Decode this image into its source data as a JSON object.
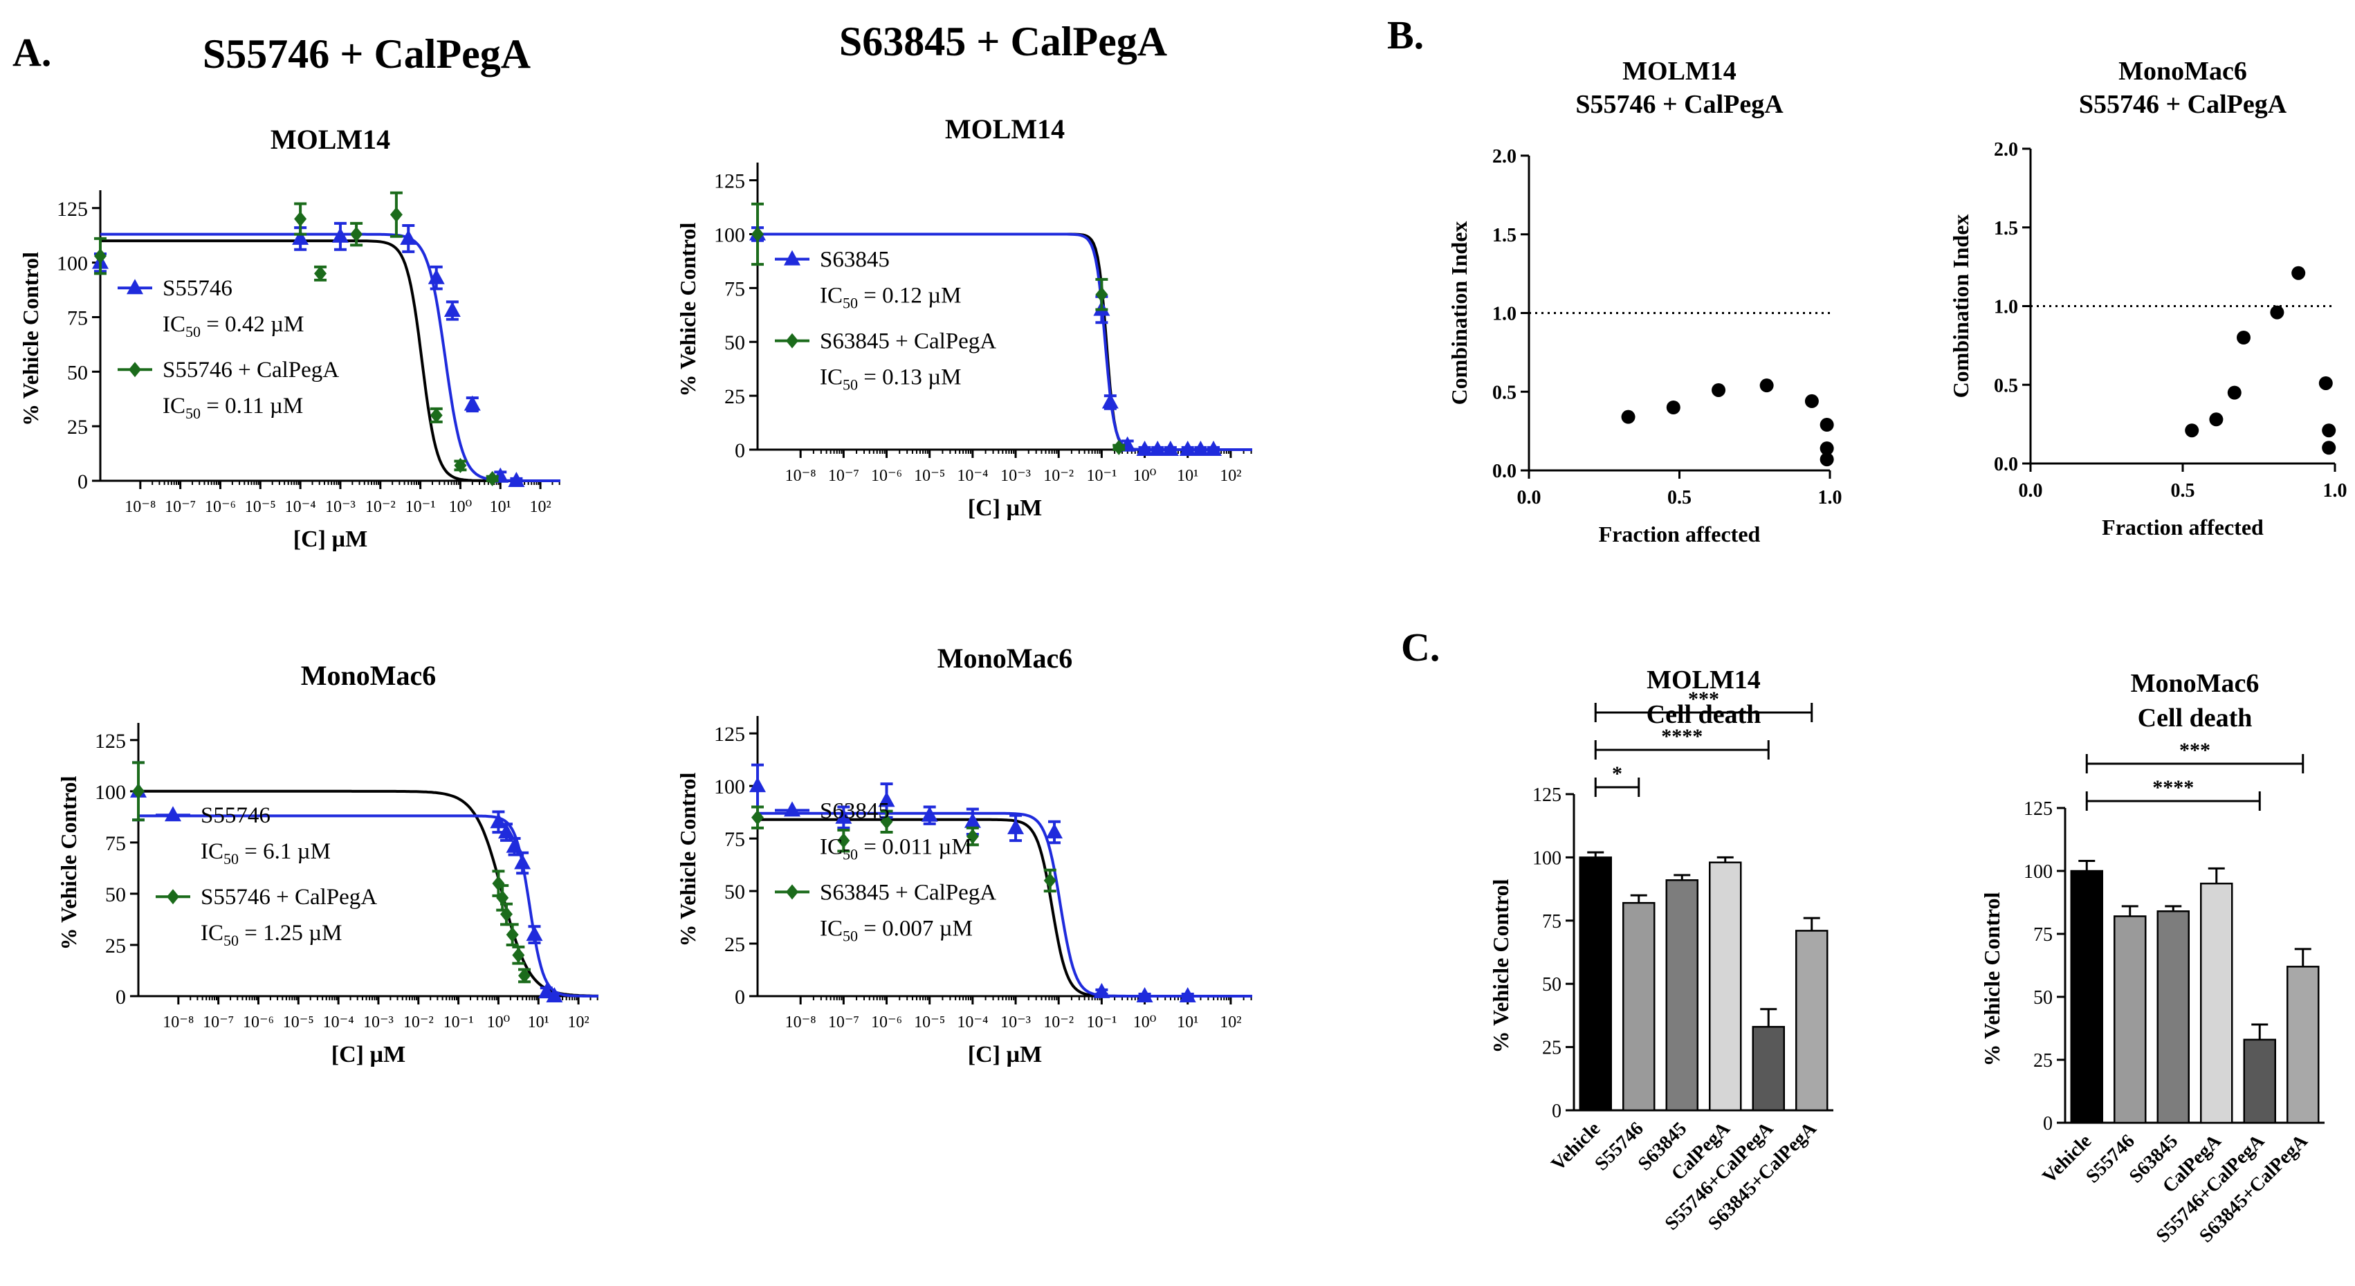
{
  "figure": {
    "panel_labels": {
      "a": "A.",
      "b": "B.",
      "c": "C."
    },
    "group_headers": {
      "s55746": "S55746 + CalPegA",
      "s63845": "S63845 + CalPegA"
    },
    "dose_tick_labels": [
      "10⁻⁸",
      "10⁻⁷",
      "10⁻⁶",
      "10⁻⁵",
      "10⁻⁴",
      "10⁻³",
      "10⁻²",
      "10⁻¹",
      "10⁰",
      "10¹",
      "10²"
    ],
    "colors": {
      "blue": "#1f2bdc",
      "green": "#1b6b1b",
      "black": "#000000"
    }
  },
  "chart_data": [
    {
      "id": "a1",
      "type": "line",
      "title": "MOLM14",
      "xlabel": "[C] µM",
      "ylabel": "% Vehicle Control",
      "xscale": "log",
      "xlim_log10": [
        -9,
        2.5
      ],
      "ylim": [
        0,
        130
      ],
      "yticks": [
        0,
        25,
        50,
        75,
        100,
        125
      ],
      "legend": "center-left",
      "series": [
        {
          "name": "S55746",
          "ic50_text": "IC50 = 0.42 µM",
          "color": "#1f2bdc",
          "marker": "triangle",
          "fit": {
            "top": 113,
            "bottom": 0,
            "ic50_log10": -0.38,
            "hill": 2.0
          },
          "points": [
            [
              -9,
              100,
              4
            ],
            [
              -4,
              111,
              5
            ],
            [
              -3,
              112,
              6
            ],
            [
              -1.3,
              111,
              6
            ],
            [
              -0.6,
              93,
              5
            ],
            [
              -0.2,
              78,
              4
            ],
            [
              0.3,
              35,
              3
            ],
            [
              1,
              2,
              2
            ],
            [
              1.4,
              0,
              1
            ]
          ]
        },
        {
          "name": "S55746 + CalPegA",
          "ic50_text": "IC50 = 0.11 µM",
          "color": "#1b6b1b",
          "marker": "diamond",
          "fit": {
            "top": 110,
            "bottom": 0,
            "ic50_log10": -0.96,
            "hill": 2.3
          },
          "points": [
            [
              -9,
              103,
              8
            ],
            [
              -4,
              120,
              7
            ],
            [
              -3.5,
              95,
              3
            ],
            [
              -2.6,
              113,
              5
            ],
            [
              -1.6,
              122,
              10
            ],
            [
              -0.6,
              30,
              3
            ],
            [
              0,
              7,
              2
            ],
            [
              0.8,
              1,
              1
            ]
          ]
        }
      ]
    },
    {
      "id": "a2",
      "type": "line",
      "title": "MOLM14",
      "xlabel": "[C] µM",
      "ylabel": "% Vehicle Control",
      "xscale": "log",
      "xlim_log10": [
        -9,
        2.5
      ],
      "ylim": [
        0,
        130
      ],
      "yticks": [
        0,
        25,
        50,
        75,
        100,
        125
      ],
      "legend": "center-left",
      "series": [
        {
          "name": "S63845",
          "ic50_text": "IC50 = 0.12 µM",
          "color": "#1f2bdc",
          "marker": "triangle",
          "fit": {
            "top": 100,
            "bottom": 0,
            "ic50_log10": -0.92,
            "hill": 4.0
          },
          "points": [
            [
              -9,
              100,
              3
            ],
            [
              -1,
              65,
              6
            ],
            [
              -0.8,
              22,
              3
            ],
            [
              -0.4,
              2,
              2
            ],
            [
              0,
              0,
              1
            ],
            [
              0.3,
              0,
              1
            ],
            [
              0.6,
              0,
              1
            ],
            [
              1,
              0,
              1
            ],
            [
              1.3,
              0,
              1
            ],
            [
              1.6,
              0,
              1
            ]
          ]
        },
        {
          "name": "S63845 + CalPegA",
          "ic50_text": "IC50 = 0.13 µM",
          "color": "#1b6b1b",
          "marker": "diamond",
          "fit": {
            "top": 100,
            "bottom": 0,
            "ic50_log10": -0.89,
            "hill": 4.5
          },
          "points": [
            [
              -9,
              100,
              14
            ],
            [
              -1,
              72,
              7
            ],
            [
              -0.6,
              1,
              1
            ]
          ]
        }
      ]
    },
    {
      "id": "a3",
      "type": "line",
      "title": "MonoMac6",
      "xlabel": "[C] µM",
      "ylabel": "% Vehicle Control",
      "xscale": "log",
      "xlim_log10": [
        -9,
        2.5
      ],
      "ylim": [
        0,
        130
      ],
      "yticks": [
        0,
        25,
        50,
        75,
        100,
        125
      ],
      "legend": "center-left",
      "series": [
        {
          "name": "S55746",
          "ic50_text": "IC50 = 6.1 µM",
          "color": "#1f2bdc",
          "marker": "triangle",
          "fit": {
            "top": 88,
            "bottom": 0,
            "ic50_log10": 0.78,
            "hill": 2.5
          },
          "points": [
            [
              -9,
              100,
              14
            ],
            [
              0,
              85,
              5
            ],
            [
              0.2,
              80,
              4
            ],
            [
              0.4,
              73,
              4
            ],
            [
              0.6,
              65,
              5
            ],
            [
              0.9,
              30,
              4
            ],
            [
              1.2,
              2,
              2
            ],
            [
              1.4,
              0,
              1
            ]
          ]
        },
        {
          "name": "S55746 + CalPegA",
          "ic50_text": "IC50 = 1.25 µM",
          "color": "#1b6b1b",
          "marker": "diamond",
          "fit": {
            "top": 100,
            "bottom": 0,
            "ic50_log10": 0.1,
            "hill": 1.3
          },
          "points": [
            [
              -9,
              100,
              14
            ],
            [
              0,
              55,
              6
            ],
            [
              0.1,
              48,
              6
            ],
            [
              0.2,
              40,
              5
            ],
            [
              0.35,
              30,
              5
            ],
            [
              0.5,
              20,
              4
            ],
            [
              0.65,
              10,
              3
            ]
          ]
        }
      ]
    },
    {
      "id": "a4",
      "type": "line",
      "title": "MonoMac6",
      "xlabel": "[C] µM",
      "ylabel": "% Vehicle Control",
      "xscale": "log",
      "xlim_log10": [
        -9,
        2.5
      ],
      "ylim": [
        0,
        130
      ],
      "yticks": [
        0,
        25,
        50,
        75,
        100,
        125
      ],
      "legend": "center-left",
      "series": [
        {
          "name": "S63845",
          "ic50_text": "IC50 = 0.011 µM",
          "color": "#1f2bdc",
          "marker": "triangle",
          "fit": {
            "top": 87,
            "bottom": 0,
            "ic50_log10": -1.96,
            "hill": 2.5
          },
          "points": [
            [
              -9,
              100,
              10
            ],
            [
              -7,
              85,
              5
            ],
            [
              -6,
              93,
              8
            ],
            [
              -5,
              86,
              4
            ],
            [
              -4,
              83,
              6
            ],
            [
              -3,
              80,
              6
            ],
            [
              -2.1,
              78,
              5
            ],
            [
              -1,
              2,
              1
            ],
            [
              0,
              0,
              1
            ],
            [
              1,
              0,
              1
            ]
          ]
        },
        {
          "name": "S63845 + CalPegA",
          "ic50_text": "IC50 = 0.007 µM",
          "color": "#1b6b1b",
          "marker": "diamond",
          "fit": {
            "top": 84,
            "bottom": 0,
            "ic50_log10": -2.15,
            "hill": 2.5
          },
          "points": [
            [
              -9,
              85,
              5
            ],
            [
              -7,
              74,
              5
            ],
            [
              -6,
              83,
              5
            ],
            [
              -4,
              76,
              4
            ],
            [
              -2.2,
              55,
              5
            ]
          ]
        }
      ]
    },
    {
      "id": "b1",
      "type": "scatter",
      "title": "MOLM14",
      "subtitle": "S55746 + CalPegA",
      "xlabel": "Fraction affected",
      "ylabel": "Combination Index",
      "xlim": [
        0,
        1
      ],
      "ylim": [
        0,
        2
      ],
      "xticks": [
        "0.0",
        "0.5",
        "1.0"
      ],
      "yticks": [
        "0.0",
        "0.5",
        "1.0",
        "1.5",
        "2.0"
      ],
      "reference_line": 1.0,
      "points": [
        [
          0.33,
          0.34
        ],
        [
          0.48,
          0.4
        ],
        [
          0.63,
          0.51
        ],
        [
          0.79,
          0.54
        ],
        [
          0.94,
          0.44
        ],
        [
          0.99,
          0.29
        ],
        [
          0.99,
          0.14
        ],
        [
          0.99,
          0.07
        ]
      ]
    },
    {
      "id": "b2",
      "type": "scatter",
      "title": "MonoMac6",
      "subtitle": "S55746 + CalPegA",
      "xlabel": "Fraction affected",
      "ylabel": "Combination Index",
      "xlim": [
        0,
        1
      ],
      "ylim": [
        0,
        2
      ],
      "xticks": [
        "0.0",
        "0.5",
        "1.0"
      ],
      "yticks": [
        "0.0",
        "0.5",
        "1.0",
        "1.5",
        "2.0"
      ],
      "reference_line": 1.0,
      "points": [
        [
          0.53,
          0.21
        ],
        [
          0.61,
          0.28
        ],
        [
          0.67,
          0.45
        ],
        [
          0.7,
          0.8
        ],
        [
          0.81,
          0.96
        ],
        [
          0.88,
          1.21
        ],
        [
          0.97,
          0.51
        ],
        [
          0.98,
          0.21
        ],
        [
          0.98,
          0.1
        ]
      ]
    },
    {
      "id": "c1",
      "type": "bar",
      "title": "MOLM14",
      "subtitle": "Cell death",
      "ylabel": "% Vehicle Control",
      "ylim": [
        0,
        125
      ],
      "yticks": [
        0,
        25,
        50,
        75,
        100,
        125
      ],
      "categories": [
        "Vehicle",
        "S55746",
        "S63845",
        "CalPegA",
        "S55746+CalPegA",
        "S63845+CalPegA"
      ],
      "values": [
        100,
        82,
        91,
        98,
        33,
        71
      ],
      "errors": [
        2,
        3,
        2,
        2,
        7,
        5
      ],
      "fills": [
        "#000000",
        "#9a9a9a",
        "#7d7d7d",
        "#d6d6d6",
        "#595959",
        "#a8a8a8"
      ],
      "significance": [
        {
          "from": 0,
          "to": 1,
          "label": "*",
          "level": 1
        },
        {
          "from": 0,
          "to": 4,
          "label": "****",
          "level": 2
        },
        {
          "from": 0,
          "to": 5,
          "label": "***",
          "level": 3
        }
      ]
    },
    {
      "id": "c2",
      "type": "bar",
      "title": "MonoMac6",
      "subtitle": "Cell death",
      "ylabel": "% Vehicle Control",
      "ylim": [
        0,
        125
      ],
      "yticks": [
        0,
        25,
        50,
        75,
        100,
        125
      ],
      "categories": [
        "Vehicle",
        "S55746",
        "S63845",
        "CalPegA",
        "S55746+CalPegA",
        "S63845+CalPegA"
      ],
      "values": [
        100,
        82,
        84,
        95,
        33,
        62
      ],
      "errors": [
        4,
        4,
        2,
        6,
        6,
        7
      ],
      "fills": [
        "#000000",
        "#9a9a9a",
        "#7d7d7d",
        "#d6d6d6",
        "#595959",
        "#a8a8a8"
      ],
      "significance": [
        {
          "from": 0,
          "to": 4,
          "label": "****",
          "level": 1
        },
        {
          "from": 0,
          "to": 5,
          "label": "***",
          "level": 2
        }
      ]
    }
  ]
}
